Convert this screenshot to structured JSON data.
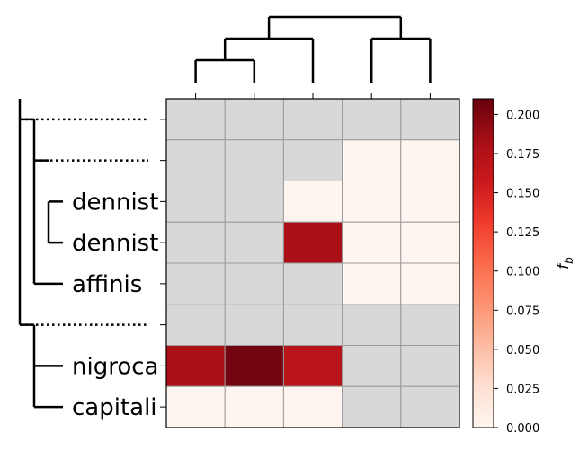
{
  "chart_data": {
    "type": "heatmap",
    "row_labels": [
      "",
      "",
      "dennist",
      "dennist",
      "affinis",
      "",
      "nigroca",
      "capitali"
    ],
    "column_labels": [
      "",
      "",
      "",
      "",
      ""
    ],
    "values": [
      [
        null,
        null,
        null,
        null,
        null
      ],
      [
        null,
        null,
        null,
        0.0,
        0.0
      ],
      [
        null,
        null,
        0.0,
        0.0,
        0.0
      ],
      [
        null,
        null,
        0.18,
        0.0,
        0.0
      ],
      [
        null,
        null,
        null,
        0.0,
        0.0
      ],
      [
        null,
        null,
        null,
        null,
        null
      ],
      [
        0.18,
        0.205,
        0.17,
        null,
        null
      ],
      [
        0.0,
        0.0,
        0.0,
        null,
        null
      ]
    ],
    "missing_color": "#d8d8d8",
    "colormap": "Reds",
    "colorbar": {
      "label": "f_b",
      "min": 0.0,
      "max": 0.21,
      "ticks": [
        0.0,
        0.025,
        0.05,
        0.075,
        0.1,
        0.125,
        0.15,
        0.175,
        0.2
      ],
      "tick_labels": [
        "0.000",
        "0.025",
        "0.050",
        "0.075",
        "0.100",
        "0.125",
        "0.150",
        "0.175",
        "0.200"
      ]
    },
    "row_dendrogram_leaf_style": [
      "dotted",
      "dotted",
      "solid",
      "solid",
      "solid",
      "dotted",
      "solid",
      "solid"
    ],
    "grid": true
  }
}
